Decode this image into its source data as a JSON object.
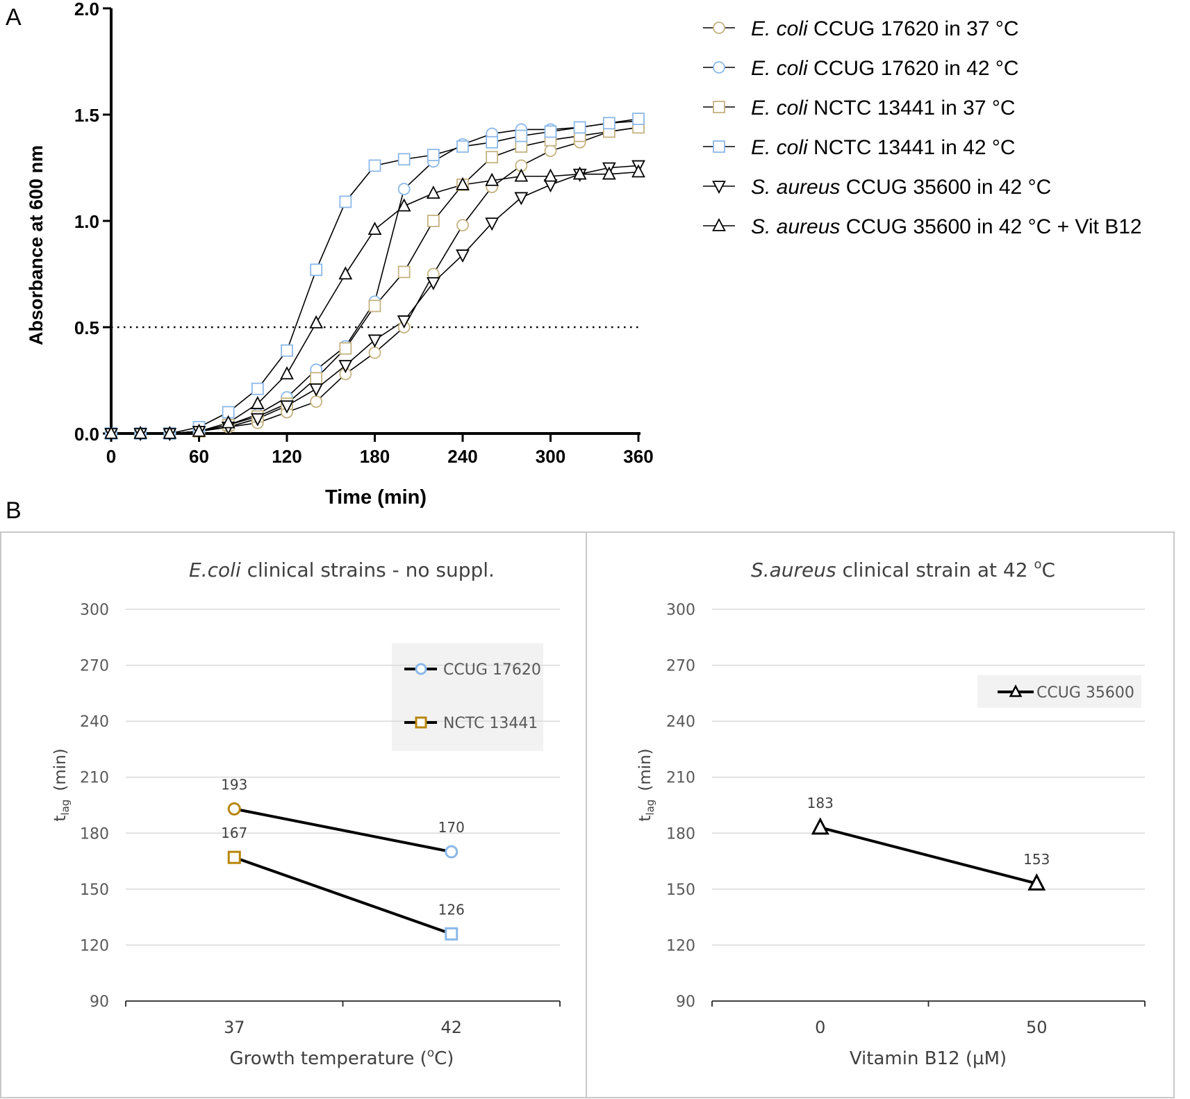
{
  "panel_labels": {
    "a": "A",
    "b": "B"
  },
  "chart_data": [
    {
      "type": "line",
      "panel": "A",
      "xlabel": "Time (min)",
      "ylabel": "Absorbance at 600 nm",
      "xlim": [
        0,
        360
      ],
      "ylim": [
        0,
        2.0
      ],
      "xticks": [
        0,
        60,
        120,
        180,
        240,
        300,
        360
      ],
      "yticks": [
        0.0,
        0.5,
        1.0,
        1.5,
        2.0
      ],
      "ytick_labels": [
        "0.0",
        "0.5",
        "1.0",
        "1.5",
        "2.0"
      ],
      "reference_line": {
        "y": 0.5,
        "style": "dotted"
      },
      "legend_position": "right",
      "series": [
        {
          "name": "CCUG 17620 in 37 °C",
          "name_italic": "E. coli",
          "marker": "circle",
          "color": "#c5b27f",
          "x": [
            0,
            20,
            40,
            60,
            80,
            100,
            120,
            140,
            160,
            180,
            200,
            220,
            240,
            260,
            280,
            300,
            320,
            340,
            360
          ],
          "y": [
            0.0,
            0.0,
            0.0,
            0.01,
            0.03,
            0.05,
            0.1,
            0.15,
            0.28,
            0.38,
            0.5,
            0.75,
            0.98,
            1.16,
            1.26,
            1.33,
            1.37,
            1.42,
            1.44
          ]
        },
        {
          "name": "CCUG 17620 in 42 °C",
          "name_italic": "E. coli",
          "marker": "circle",
          "color": "#8ab8e8",
          "x": [
            0,
            20,
            40,
            60,
            80,
            100,
            120,
            140,
            160,
            180,
            200,
            220,
            240,
            260,
            280,
            300,
            320,
            340,
            360
          ],
          "y": [
            0.0,
            0.0,
            0.0,
            0.01,
            0.04,
            0.09,
            0.17,
            0.3,
            0.41,
            0.62,
            1.15,
            1.28,
            1.36,
            1.41,
            1.43,
            1.43,
            1.44,
            1.46,
            1.47
          ]
        },
        {
          "name": "NCTC 13441 in 37 °C",
          "name_italic": "E. coli",
          "marker": "square",
          "color": "#c5b27f",
          "x": [
            0,
            20,
            40,
            60,
            80,
            100,
            120,
            140,
            160,
            180,
            200,
            220,
            240,
            260,
            280,
            300,
            320,
            340,
            360
          ],
          "y": [
            0.0,
            0.0,
            0.0,
            0.01,
            0.04,
            0.08,
            0.14,
            0.26,
            0.4,
            0.6,
            0.76,
            1.0,
            1.17,
            1.3,
            1.35,
            1.38,
            1.4,
            1.42,
            1.44
          ]
        },
        {
          "name": "NCTC 13441 in 42 °C",
          "name_italic": "E. coli",
          "marker": "square",
          "color": "#8ab8e8",
          "x": [
            0,
            20,
            40,
            60,
            80,
            100,
            120,
            140,
            160,
            180,
            200,
            220,
            240,
            260,
            280,
            300,
            320,
            340,
            360
          ],
          "y": [
            0.0,
            0.0,
            0.0,
            0.03,
            0.1,
            0.21,
            0.39,
            0.77,
            1.09,
            1.26,
            1.29,
            1.31,
            1.35,
            1.37,
            1.4,
            1.42,
            1.44,
            1.46,
            1.48
          ]
        },
        {
          "name": "CCUG 35600 in 42 °C",
          "name_italic": "S. aureus",
          "marker": "triangle-down",
          "color": "#000000",
          "x": [
            0,
            20,
            40,
            60,
            80,
            100,
            120,
            140,
            160,
            180,
            200,
            220,
            240,
            260,
            280,
            300,
            320,
            340,
            360
          ],
          "y": [
            0.0,
            0.0,
            0.0,
            0.01,
            0.03,
            0.07,
            0.13,
            0.21,
            0.32,
            0.44,
            0.53,
            0.71,
            0.84,
            0.99,
            1.11,
            1.17,
            1.22,
            1.25,
            1.26
          ]
        },
        {
          "name": "CCUG 35600 in 42 °C + Vit B12",
          "name_italic": "S. aureus",
          "marker": "triangle-up",
          "color": "#000000",
          "x": [
            0,
            20,
            40,
            60,
            80,
            100,
            120,
            140,
            160,
            180,
            200,
            220,
            240,
            260,
            280,
            300,
            320,
            340,
            360
          ],
          "y": [
            0.0,
            0.0,
            0.0,
            0.01,
            0.05,
            0.14,
            0.28,
            0.52,
            0.75,
            0.96,
            1.07,
            1.13,
            1.17,
            1.19,
            1.21,
            1.21,
            1.22,
            1.22,
            1.23
          ]
        }
      ]
    },
    {
      "type": "line",
      "panel": "B-left",
      "title_italic": "E.coli",
      "title_rest": " clinical strains - no suppl.",
      "xlabel": "Growth temperature (°C)",
      "xlabel_parts": [
        "Growth temperature (",
        "o",
        "C)"
      ],
      "ylabel_main": "t",
      "ylabel_sub": "lag",
      "ylabel_unit": "(min)",
      "categories": [
        "37",
        "42"
      ],
      "ylim": [
        90,
        300
      ],
      "yticks": [
        90,
        120,
        150,
        180,
        210,
        240,
        270,
        300
      ],
      "grid": true,
      "legend_position": "top-right",
      "series": [
        {
          "name": "CCUG 17620",
          "values": [
            193,
            170
          ],
          "value_labels": [
            "193",
            "170"
          ],
          "marker": "circle",
          "marker_colors": [
            "#b8860b",
            "#8ab8e8"
          ],
          "legend_color": "#8ab8e8"
        },
        {
          "name": "NCTC 13441",
          "values": [
            167,
            126
          ],
          "value_labels": [
            "167",
            "126"
          ],
          "marker": "square",
          "marker_colors": [
            "#b8860b",
            "#8ab8e8"
          ],
          "legend_color": "#b8860b"
        }
      ]
    },
    {
      "type": "line",
      "panel": "B-right",
      "title_italic": "S.aureus",
      "title_rest": " clinical strain at 42 ",
      "title_sup": "o",
      "title_end": "C",
      "xlabel": "Vitamin B12 (µM)",
      "ylabel_main": "t",
      "ylabel_sub": "lag",
      "ylabel_unit": "(min)",
      "categories": [
        "0",
        "50"
      ],
      "ylim": [
        90,
        300
      ],
      "yticks": [
        90,
        120,
        150,
        180,
        210,
        240,
        270,
        300
      ],
      "grid": true,
      "legend_position": "top-right",
      "series": [
        {
          "name": "CCUG 35600",
          "values": [
            183,
            153
          ],
          "value_labels": [
            "183",
            "153"
          ],
          "marker": "triangle-up",
          "marker_colors": [
            "#000000",
            "#000000"
          ],
          "legend_color": "#000000"
        }
      ]
    }
  ]
}
